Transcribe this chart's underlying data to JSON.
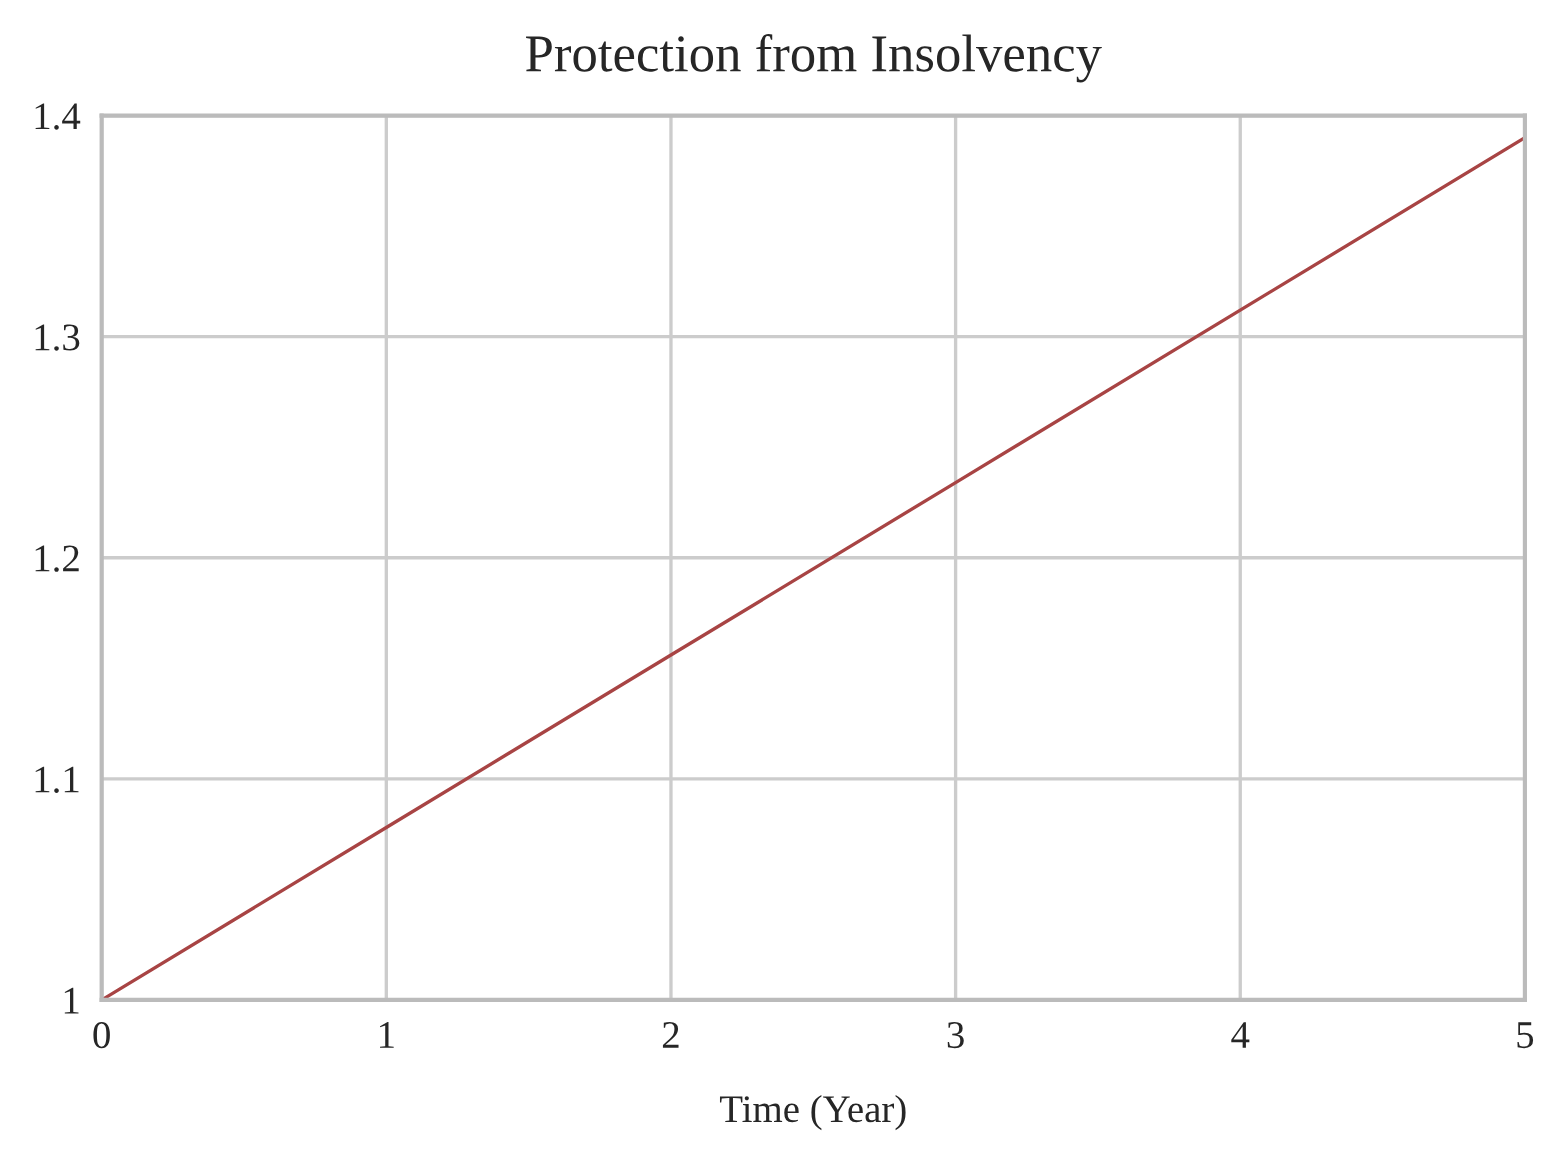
{
  "chart_data": {
    "type": "line",
    "title": "Protection from Insolvency",
    "xlabel": "Time (Year)",
    "x": [
      0,
      1,
      2,
      3,
      4,
      5
    ],
    "series": [
      {
        "color": "#a84444",
        "values": [
          1.0,
          1.078,
          1.156,
          1.234,
          1.312,
          1.39
        ]
      }
    ],
    "xlim": [
      0,
      5
    ],
    "xticks": [
      0,
      1,
      2,
      3,
      4,
      5
    ],
    "ylim": [
      1,
      1.4
    ],
    "yticks": [
      1,
      1.1,
      1.2,
      1.3,
      1.4
    ],
    "grid": true,
    "marker": "none",
    "line_style": "solid",
    "legend": false
  }
}
